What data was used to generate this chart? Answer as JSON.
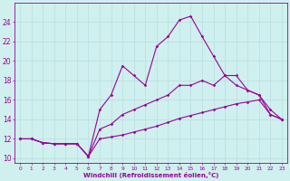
{
  "xlabel": "Windchill (Refroidissement éolien,°C)",
  "bg_color": "#cff0ee",
  "line_color": "#990099",
  "grid_color": "#b8dedd",
  "xlim": [
    -0.5,
    23.5
  ],
  "ylim": [
    9.5,
    26.0
  ],
  "yticks": [
    10,
    12,
    14,
    16,
    18,
    20,
    22,
    24
  ],
  "xticks": [
    0,
    1,
    2,
    3,
    4,
    5,
    6,
    7,
    8,
    9,
    10,
    11,
    12,
    13,
    14,
    15,
    16,
    17,
    18,
    19,
    20,
    21,
    22,
    23
  ],
  "line1_x": [
    0,
    1,
    2,
    3,
    4,
    5,
    6,
    7,
    8,
    9,
    10,
    11,
    12,
    13,
    14,
    15,
    16,
    17,
    18,
    19,
    20,
    21,
    22,
    23
  ],
  "line1_y": [
    12,
    12,
    11.6,
    11.5,
    11.5,
    11.5,
    10.2,
    12.0,
    12.2,
    12.4,
    12.7,
    13.0,
    13.3,
    13.7,
    14.1,
    14.4,
    14.7,
    15.0,
    15.3,
    15.6,
    15.8,
    16.0,
    14.5,
    14.0
  ],
  "line2_x": [
    0,
    1,
    2,
    3,
    4,
    5,
    6,
    7,
    8,
    9,
    10,
    11,
    12,
    13,
    14,
    15,
    16,
    17,
    18,
    19,
    20,
    21,
    22,
    23
  ],
  "line2_y": [
    12,
    12,
    11.6,
    11.5,
    11.5,
    11.5,
    10.2,
    15.0,
    16.5,
    19.5,
    18.5,
    17.5,
    21.5,
    22.5,
    24.2,
    24.6,
    22.5,
    20.5,
    18.5,
    18.5,
    17.0,
    16.5,
    15.0,
    14.0
  ],
  "line3_x": [
    0,
    1,
    2,
    3,
    4,
    5,
    6,
    7,
    8,
    9,
    10,
    11,
    12,
    13,
    14,
    15,
    16,
    17,
    18,
    19,
    20,
    21,
    22,
    23
  ],
  "line3_y": [
    12,
    12,
    11.6,
    11.5,
    11.5,
    11.5,
    10.2,
    13.0,
    13.5,
    14.5,
    15.0,
    15.5,
    16.0,
    16.5,
    17.5,
    17.5,
    18.0,
    17.5,
    18.5,
    17.5,
    17.0,
    16.5,
    14.5,
    14.0
  ]
}
